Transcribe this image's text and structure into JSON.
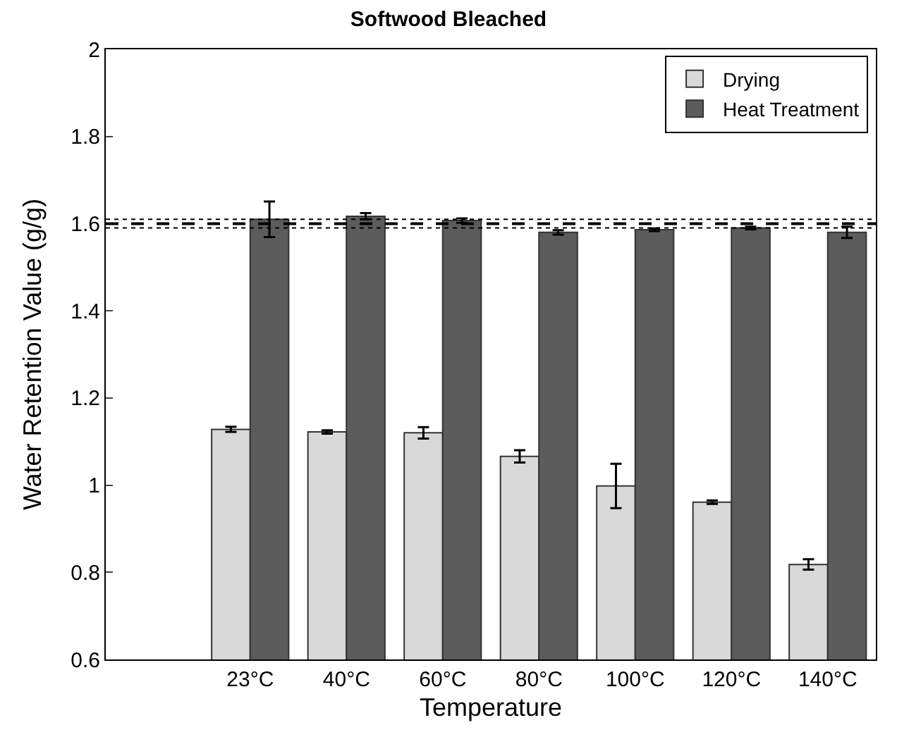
{
  "chart_data": {
    "type": "bar",
    "title": "Softwood Bleached",
    "xlabel": "Temperature",
    "ylabel": "Water Retention Value (g/g)",
    "categories": [
      "23°C",
      "40°C",
      "60°C",
      "80°C",
      "100°C",
      "120°C",
      "140°C"
    ],
    "series": [
      {
        "name": "Drying",
        "color": "#d9d9d9",
        "values": [
          1.128,
          1.122,
          1.12,
          1.066,
          0.998,
          0.961,
          0.818
        ],
        "errors": [
          0.006,
          0.004,
          0.013,
          0.014,
          0.051,
          0.004,
          0.012
        ]
      },
      {
        "name": "Heat Treatment",
        "color": "#5c5c5c",
        "values": [
          1.61,
          1.617,
          1.607,
          1.58,
          1.586,
          1.59,
          1.58
        ],
        "errors": [
          0.041,
          0.007,
          0.005,
          0.005,
          0.003,
          0.003,
          0.013
        ]
      }
    ],
    "ylim": [
      0.6,
      2
    ],
    "yticks": [
      0.6,
      0.8,
      1,
      1.2,
      1.4,
      1.6,
      1.8,
      2
    ],
    "grid": false,
    "legend": "top right",
    "ref_lines": [
      {
        "axis": "y",
        "value": 1.6,
        "color": "#000000",
        "line_style": "dashed"
      },
      {
        "axis": "y",
        "value": 1.61,
        "color": "#000000",
        "line_style": "dotted"
      },
      {
        "axis": "y",
        "value": 1.59,
        "color": "#000000",
        "line_style": "dotted"
      }
    ]
  }
}
